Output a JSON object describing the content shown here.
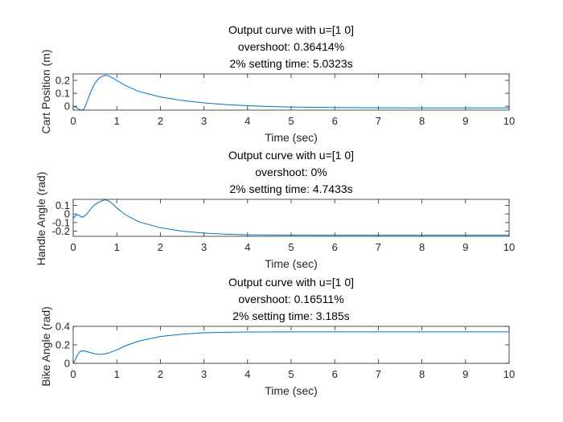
{
  "chart_data": [
    {
      "type": "line",
      "title": [
        "Output curve with u=[1 0]",
        "overshoot: 0.36414%",
        "2% setting time: 5.0323s"
      ],
      "xlabel": "Time (sec)",
      "ylabel": "Cart Position (m)",
      "xlim": [
        0,
        10
      ],
      "ylim": [
        -0.03,
        0.25
      ],
      "xticks": [
        "0",
        "1",
        "2",
        "3",
        "4",
        "5",
        "6",
        "7",
        "8",
        "9",
        "10"
      ],
      "yticks": [
        "0",
        "0.1",
        "0.2"
      ],
      "ytick_values": [
        0,
        0.1,
        0.2
      ],
      "grid": false,
      "line_color": "#0072BD",
      "series": [
        {
          "x": [
            0,
            0.05,
            0.1,
            0.15,
            0.2,
            0.25,
            0.3,
            0.4,
            0.5,
            0.6,
            0.7,
            0.75,
            0.8,
            0.9,
            1.0,
            1.2,
            1.5,
            2.0,
            2.5,
            3.0,
            3.5,
            4.0,
            4.5,
            5.0,
            6.0,
            7.0,
            8.0,
            9.0,
            10.0
          ],
          "y": [
            0.0,
            -0.005,
            -0.015,
            -0.027,
            -0.03,
            -0.02,
            0.02,
            0.11,
            0.18,
            0.22,
            0.237,
            0.24,
            0.236,
            0.22,
            0.2,
            0.16,
            0.115,
            0.072,
            0.045,
            0.026,
            0.013,
            0.004,
            -0.002,
            -0.006,
            -0.01,
            -0.012,
            -0.013,
            -0.013,
            -0.013
          ]
        }
      ]
    },
    {
      "type": "line",
      "title": [
        "Output curve with u=[1 0]",
        "overshoot: 0%",
        "2% setting time: 4.7433s"
      ],
      "xlabel": "Time (sec)",
      "ylabel": "Handle Angle (rad)",
      "xlim": [
        0,
        10
      ],
      "ylim": [
        -0.26,
        0.17
      ],
      "xticks": [
        "0",
        "1",
        "2",
        "3",
        "4",
        "5",
        "6",
        "7",
        "8",
        "9",
        "10"
      ],
      "yticks": [
        "0.1",
        "0",
        "-0.1",
        "-0.2"
      ],
      "ytick_values": [
        0.1,
        0,
        -0.1,
        -0.2
      ],
      "grid": false,
      "line_color": "#0072BD",
      "series": [
        {
          "x": [
            0,
            0.05,
            0.1,
            0.15,
            0.2,
            0.3,
            0.4,
            0.5,
            0.6,
            0.7,
            0.75,
            0.8,
            0.9,
            1.0,
            1.2,
            1.5,
            2.0,
            2.5,
            3.0,
            3.5,
            4.0,
            4.5,
            5.0,
            6.0,
            7.0,
            8.0,
            9.0,
            10.0
          ],
          "y": [
            -0.05,
            -0.02,
            -0.01,
            -0.02,
            -0.04,
            -0.01,
            0.06,
            0.11,
            0.14,
            0.16,
            0.163,
            0.155,
            0.12,
            0.07,
            -0.01,
            -0.09,
            -0.16,
            -0.2,
            -0.223,
            -0.235,
            -0.242,
            -0.245,
            -0.246,
            -0.247,
            -0.247,
            -0.247,
            -0.247,
            -0.247
          ]
        }
      ]
    },
    {
      "type": "line",
      "title": [
        "Output curve with u=[1 0]",
        "overshoot: 0.16511%",
        "2% setting time: 3.185s"
      ],
      "xlabel": "Time (sec)",
      "ylabel": "Bike Angle (rad)",
      "xlim": [
        0,
        10
      ],
      "ylim": [
        0,
        0.4
      ],
      "xticks": [
        "0",
        "1",
        "2",
        "3",
        "4",
        "5",
        "6",
        "7",
        "8",
        "9",
        "10"
      ],
      "yticks": [
        "0",
        "0.2",
        "0.4"
      ],
      "ytick_values": [
        0,
        0.2,
        0.4
      ],
      "grid": false,
      "line_color": "#0072BD",
      "series": [
        {
          "x": [
            0,
            0.05,
            0.1,
            0.15,
            0.2,
            0.25,
            0.3,
            0.4,
            0.5,
            0.6,
            0.7,
            0.8,
            1.0,
            1.2,
            1.5,
            2.0,
            2.5,
            3.0,
            3.5,
            4.0,
            5.0,
            6.0,
            7.0,
            8.0,
            9.0,
            10.0
          ],
          "y": [
            0.0,
            0.04,
            0.09,
            0.125,
            0.135,
            0.135,
            0.128,
            0.115,
            0.102,
            0.097,
            0.1,
            0.11,
            0.145,
            0.19,
            0.24,
            0.29,
            0.315,
            0.33,
            0.336,
            0.339,
            0.34,
            0.34,
            0.34,
            0.34,
            0.34,
            0.34
          ]
        }
      ]
    }
  ]
}
